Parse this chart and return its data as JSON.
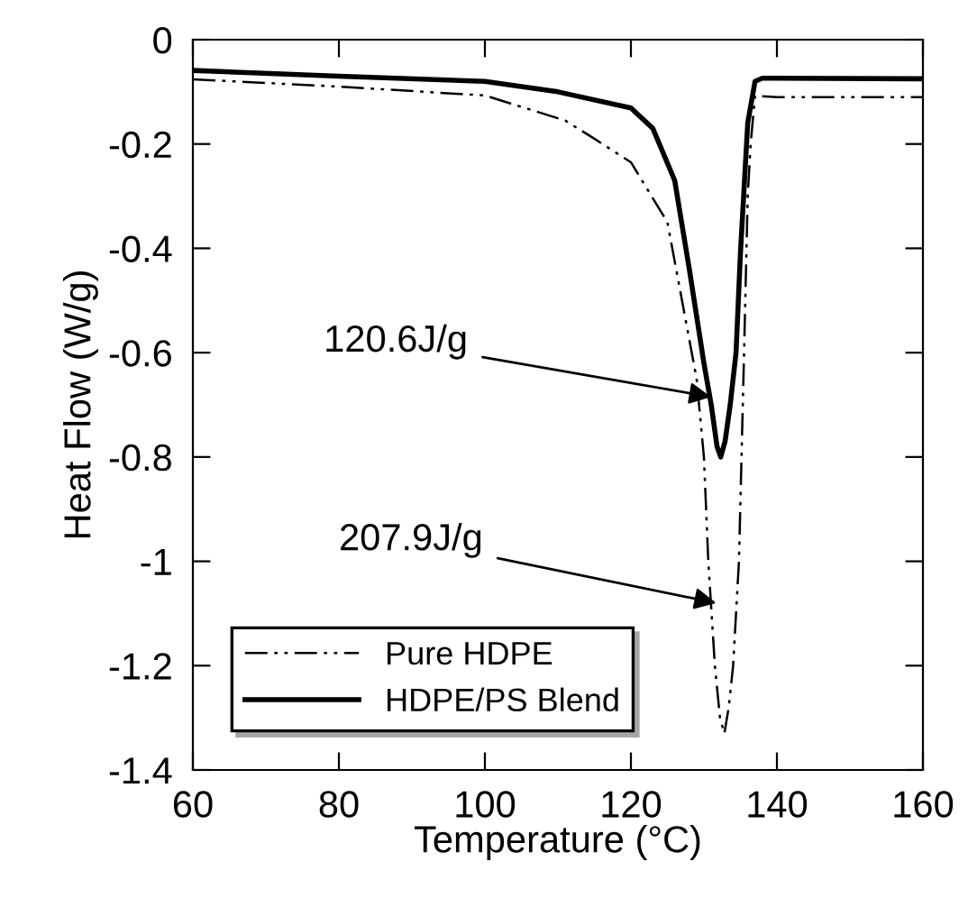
{
  "chart_data": {
    "type": "line",
    "xlabel": "Temperature (°C)",
    "ylabel": "Heat Flow (W/g)",
    "xlim": [
      60,
      160
    ],
    "ylim": [
      -1.4,
      0
    ],
    "xticks": [
      60,
      80,
      100,
      120,
      140,
      160
    ],
    "yticks": [
      {
        "value": -1.4,
        "label": "-1.4"
      },
      {
        "value": -1.2,
        "label": "-1.2"
      },
      {
        "value": -1,
        "label": "-1"
      },
      {
        "value": -0.8,
        "label": "-0.8"
      },
      {
        "value": -0.6,
        "label": "-0.6"
      },
      {
        "value": -0.4,
        "label": "-0.4"
      },
      {
        "value": -0.2,
        "label": "-0.2"
      },
      0
    ],
    "grid": false,
    "legend": "bottom left",
    "series": [
      {
        "name": "Pure HDPE",
        "color": "#000000",
        "line_style": "dashdotdot",
        "x": [
          60,
          80,
          100,
          111,
          115,
          120,
          125,
          127,
          129,
          130,
          130.6,
          131.5,
          132.2,
          132.8,
          133.4,
          134,
          134.8,
          135.5,
          136,
          136.4,
          137,
          140,
          160
        ],
        "values": [
          -0.076,
          -0.09,
          -0.107,
          -0.155,
          -0.19,
          -0.235,
          -0.35,
          -0.5,
          -0.65,
          -0.8,
          -1.0,
          -1.2,
          -1.3,
          -1.33,
          -1.28,
          -1.2,
          -1.0,
          -0.6,
          -0.3,
          -0.2,
          -0.108,
          -0.11,
          -0.11
        ]
      },
      {
        "name": "HDPE/PS Blend",
        "color": "#000000",
        "line_style": "solid",
        "x": [
          60,
          80,
          100,
          110,
          120,
          123,
          126,
          128,
          130,
          131,
          131.8,
          132.3,
          132.9,
          133.6,
          134.4,
          135,
          136,
          137,
          138,
          140,
          160
        ],
        "values": [
          -0.059,
          -0.07,
          -0.08,
          -0.1,
          -0.131,
          -0.17,
          -0.27,
          -0.44,
          -0.62,
          -0.7,
          -0.78,
          -0.8,
          -0.77,
          -0.7,
          -0.6,
          -0.41,
          -0.16,
          -0.08,
          -0.074,
          -0.074,
          -0.075
        ]
      }
    ],
    "annotations": [
      {
        "text": "120.6J/g",
        "x": 131,
        "y": -0.685
      },
      {
        "text": "207.9J/g",
        "x": 131.7,
        "y": -1.08
      }
    ]
  }
}
